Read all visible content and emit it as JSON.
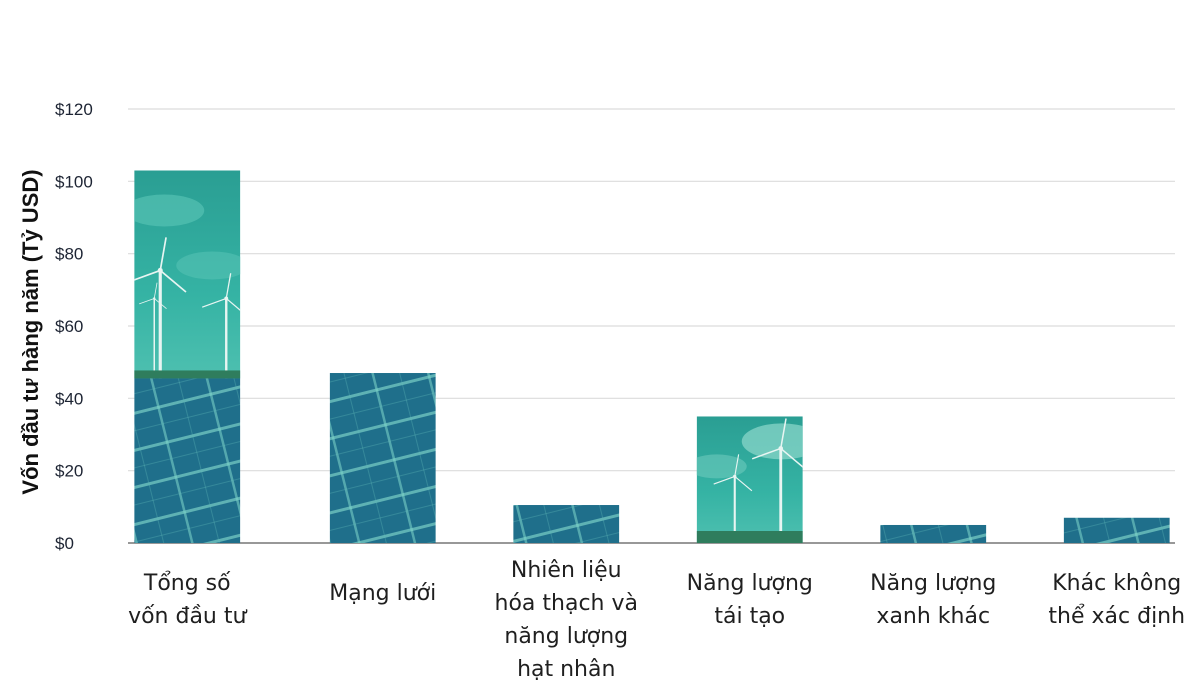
{
  "chart_data": {
    "type": "bar",
    "ylabel": "Vốn đầu tư hàng năm (Tỷ USD)",
    "xlabel": "",
    "ylim": [
      0,
      120
    ],
    "yticks": [
      0,
      20,
      40,
      60,
      80,
      100,
      120
    ],
    "ytick_labels": [
      "$0",
      "$20",
      "$40",
      "$60",
      "$80",
      "$100",
      "$120"
    ],
    "grid": true,
    "categories": [
      [
        "Tổng số",
        "vốn đầu tư"
      ],
      [
        "Mạng lưới"
      ],
      [
        "Nhiên liệu",
        "hóa thạch và",
        "năng lượng",
        "hạt nhân"
      ],
      [
        "Năng lượng",
        "tái tạo"
      ],
      [
        "Năng lượng",
        "xanh khác"
      ],
      [
        "Khác không",
        "thể xác định"
      ]
    ],
    "values": [
      103,
      47,
      10.5,
      35,
      5,
      7
    ],
    "bar_fills": [
      "wind-solar-photo",
      "solar-photo",
      "solar-photo",
      "wind-photo",
      "solar-photo",
      "solar-photo"
    ]
  },
  "colors": {
    "sky": "#2aa89b",
    "panel": "#1f6f8b",
    "panel_grid": "#7fd6c9",
    "axis": "#777777",
    "grid": "#dcdcdc"
  }
}
